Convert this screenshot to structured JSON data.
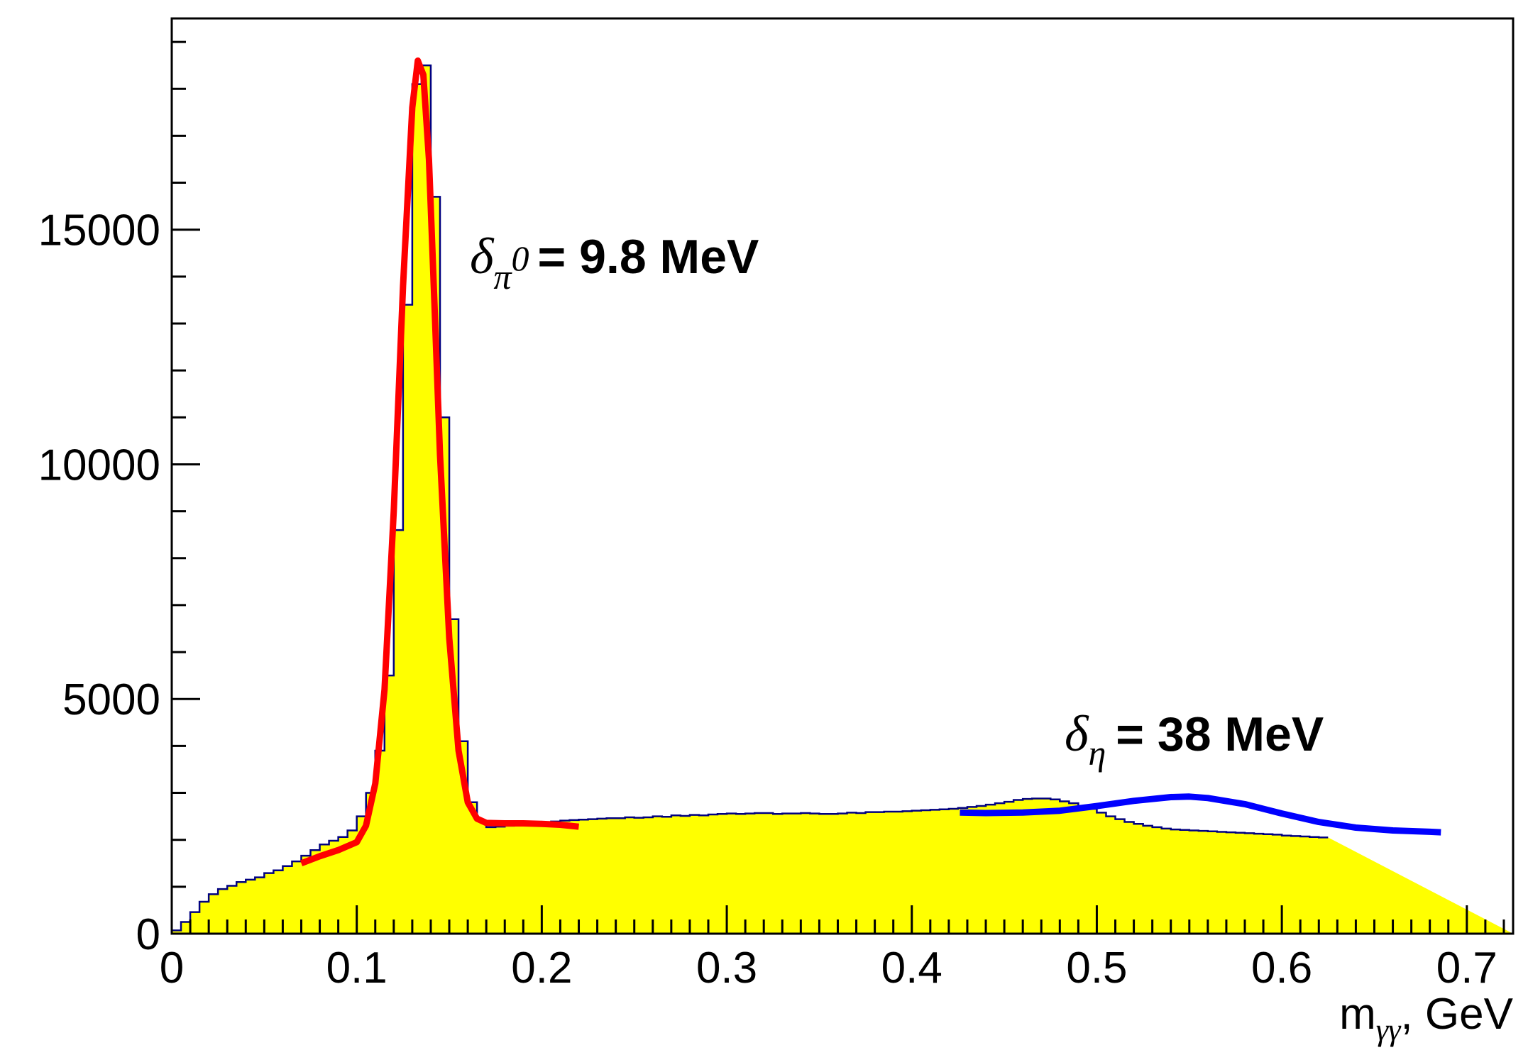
{
  "chart_data": {
    "type": "area",
    "xlabel": {
      "main": "m",
      "sub": "γγ",
      "suffix": ", GeV"
    },
    "ylabel": "",
    "xlim": [
      0,
      0.725
    ],
    "ylim": [
      0,
      19500
    ],
    "x_ticks": [
      0,
      0.1,
      0.2,
      0.3,
      0.4,
      0.5,
      0.6,
      0.7
    ],
    "x_tick_labels": [
      "0",
      "0.1",
      "0.2",
      "0.3",
      "0.4",
      "0.5",
      "0.6",
      "0.7"
    ],
    "y_ticks": [
      0,
      5000,
      10000,
      15000
    ],
    "y_tick_labels": [
      "0",
      "5000",
      "10000",
      "15000"
    ],
    "grid": false,
    "colors": {
      "histogram_fill": "#ffff00",
      "histogram_line": "#000080",
      "pi0_fit": "#ff0000",
      "eta_fit": "#0000ff"
    },
    "histogram": {
      "bin_width": 0.005,
      "values": [
        70,
        250,
        460,
        680,
        840,
        950,
        1020,
        1100,
        1150,
        1200,
        1290,
        1350,
        1440,
        1540,
        1660,
        1780,
        1900,
        1980,
        2060,
        2200,
        2500,
        3000,
        3900,
        5500,
        8600,
        13400,
        18100,
        18500,
        15700,
        11000,
        6700,
        4100,
        2800,
        2400,
        2270,
        2280,
        2300,
        2310,
        2310,
        2330,
        2360,
        2390,
        2410,
        2420,
        2430,
        2440,
        2450,
        2460,
        2460,
        2480,
        2470,
        2480,
        2500,
        2490,
        2520,
        2510,
        2530,
        2520,
        2540,
        2550,
        2560,
        2550,
        2560,
        2570,
        2570,
        2550,
        2560,
        2560,
        2570,
        2560,
        2550,
        2550,
        2560,
        2580,
        2570,
        2590,
        2590,
        2600,
        2600,
        2610,
        2620,
        2630,
        2640,
        2650,
        2660,
        2680,
        2700,
        2720,
        2750,
        2780,
        2810,
        2850,
        2870,
        2880,
        2880,
        2860,
        2820,
        2780,
        2720,
        2660,
        2580,
        2500,
        2440,
        2380,
        2340,
        2300,
        2270,
        2240,
        2220,
        2210,
        2200,
        2190,
        2180,
        2170,
        2160,
        2150,
        2140,
        2130,
        2120,
        2110,
        2090,
        2080,
        2070,
        2060,
        2050
      ]
    },
    "series": [
      {
        "name": "",
        "color": "#ff0000",
        "x": [
          0.07,
          0.08,
          0.09,
          0.1,
          0.105,
          0.11,
          0.115,
          0.12,
          0.125,
          0.13,
          0.133,
          0.136,
          0.139,
          0.142,
          0.145,
          0.15,
          0.155,
          0.16,
          0.165,
          0.17,
          0.18,
          0.19,
          0.2,
          0.21,
          0.22
        ],
        "y": [
          1500,
          1650,
          1780,
          1950,
          2300,
          3200,
          5200,
          9000,
          13800,
          17600,
          18600,
          18300,
          16500,
          13400,
          10200,
          6300,
          3900,
          2800,
          2450,
          2360,
          2350,
          2350,
          2340,
          2320,
          2280
        ]
      },
      {
        "name": "",
        "color": "#0000ff",
        "x": [
          0.426,
          0.44,
          0.46,
          0.48,
          0.5,
          0.52,
          0.54,
          0.55,
          0.56,
          0.58,
          0.6,
          0.62,
          0.64,
          0.66,
          0.68,
          0.686
        ],
        "y": [
          2580,
          2570,
          2580,
          2620,
          2720,
          2830,
          2910,
          2920,
          2890,
          2760,
          2560,
          2380,
          2260,
          2200,
          2170,
          2160
        ]
      }
    ],
    "annotations": [
      {
        "symbol": "δ",
        "sub": "π",
        "sup": "0",
        "text": "= 9.8 MeV"
      },
      {
        "symbol": "δ",
        "sub": "η",
        "text": "= 38 MeV"
      }
    ]
  }
}
